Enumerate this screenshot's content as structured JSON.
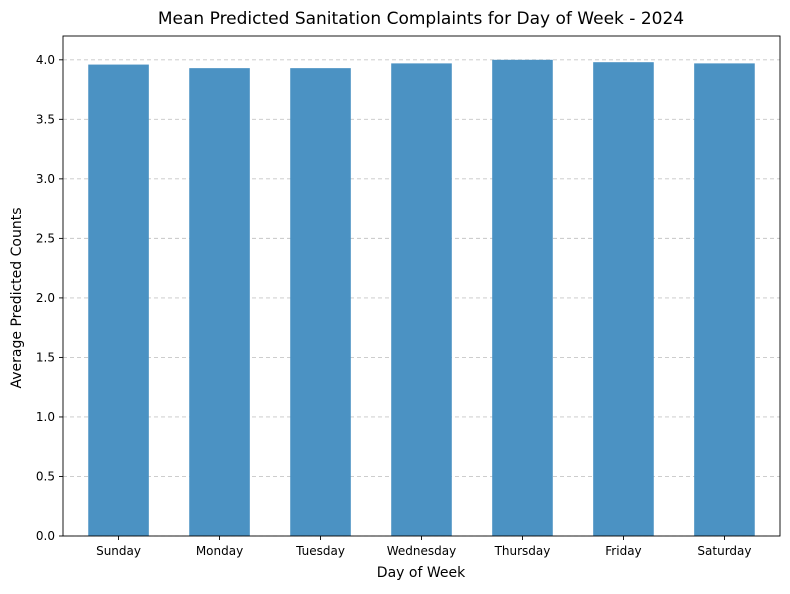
{
  "chart_data": {
    "type": "bar",
    "title": "Mean Predicted Sanitation Complaints for Day of Week - 2024",
    "xlabel": "Day of Week",
    "ylabel": "Average Predicted Counts",
    "categories": [
      "Sunday",
      "Monday",
      "Tuesday",
      "Wednesday",
      "Thursday",
      "Friday",
      "Saturday"
    ],
    "values": [
      3.96,
      3.93,
      3.93,
      3.97,
      4.0,
      3.98,
      3.97
    ],
    "ylim": [
      0,
      4.2
    ],
    "yticks": [
      "0.0",
      "0.5",
      "1.0",
      "1.5",
      "2.0",
      "2.5",
      "3.0",
      "3.5",
      "4.0"
    ],
    "grid": "y-axis dashed",
    "legend": "none",
    "bar_color": "#4b92c3",
    "grid_color": "#c6c6c6"
  }
}
